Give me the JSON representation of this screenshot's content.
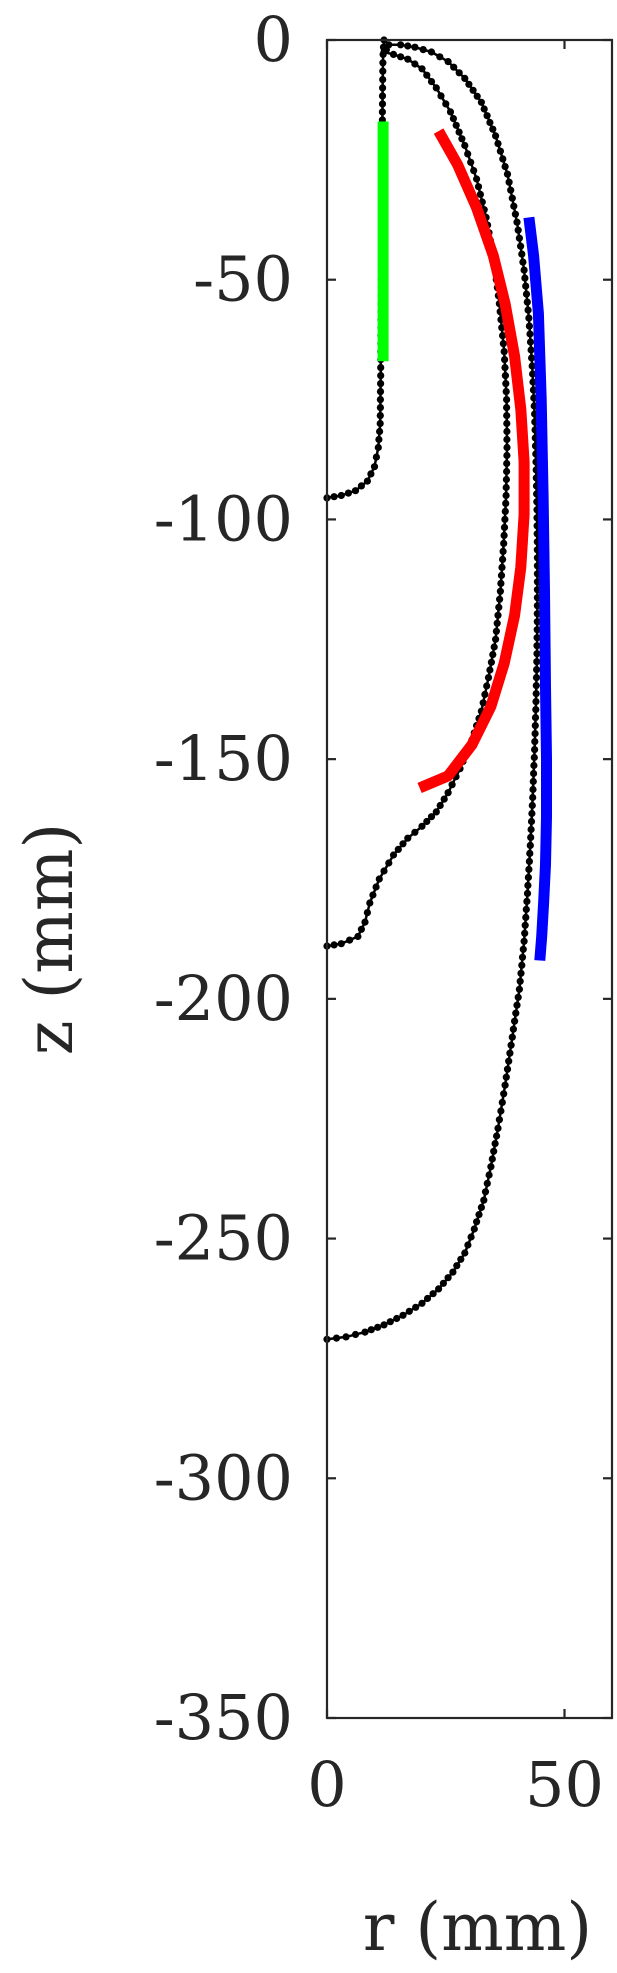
{
  "chart_data": {
    "type": "line",
    "title": "",
    "xlabel": "r (mm)",
    "ylabel": "z (mm)",
    "xlim": [
      0,
      60
    ],
    "ylim": [
      -350,
      0
    ],
    "xticks": [
      0,
      50
    ],
    "xtick_labels": [
      "0",
      "50"
    ],
    "yticks": [
      0,
      -50,
      -100,
      -150,
      -200,
      -250,
      -300,
      -350
    ],
    "ytick_labels": [
      "0",
      "-50",
      "-100",
      "-150",
      "-200",
      "-250",
      "-300",
      "-350"
    ],
    "grid": false,
    "series": [
      {
        "style": "black-dotted-line",
        "color": "#000000",
        "x": [
          0,
          3,
          6,
          8.5,
          10,
          10.8,
          11.2,
          11.3,
          11.4,
          11.5,
          11.6,
          11.7,
          11.8,
          12
        ],
        "y": [
          -95.5,
          -95,
          -94,
          -92,
          -89,
          -85,
          -80,
          -70,
          -55,
          -40,
          -25,
          -10,
          -3,
          0
        ]
      },
      {
        "style": "black-dotted-line",
        "color": "#000000",
        "x": [
          0,
          3,
          6.5,
          8,
          9,
          11,
          14,
          17,
          20,
          23,
          25.5,
          28,
          30.5,
          32.5,
          34,
          35.5,
          36.5,
          37.2,
          37.7,
          37.9,
          37.8,
          37.3,
          36.3,
          35,
          33.5,
          31.5,
          29,
          26,
          23,
          20,
          17,
          14,
          12,
          12.5
        ],
        "y": [
          -189,
          -188.5,
          -187,
          -184,
          -180,
          -175,
          -170,
          -166.5,
          -164,
          -161,
          -157,
          -152,
          -146,
          -140,
          -133,
          -125,
          -115,
          -105,
          -95,
          -85,
          -75,
          -65,
          -55,
          -45,
          -37,
          -29,
          -22,
          -15,
          -10,
          -6,
          -4,
          -3,
          -2.5,
          -2
        ]
      },
      {
        "style": "black-dotted-line",
        "color": "#000000",
        "x": [
          0,
          4,
          8,
          12,
          16,
          20,
          23.5,
          26.5,
          29,
          31,
          33,
          34.5,
          36,
          37.5,
          39,
          40.5,
          41.5,
          42.2,
          42.8,
          43.3,
          43.7,
          44,
          44.2,
          44.3,
          44.3,
          44.2,
          44,
          43.7,
          43.2,
          42.5,
          41.5,
          40,
          38,
          35.5,
          32.5,
          29,
          25.5,
          22,
          18.5,
          15.5,
          13
        ],
        "y": [
          -271,
          -270.5,
          -269.5,
          -268,
          -266,
          -263.5,
          -260.5,
          -257,
          -253,
          -248,
          -242,
          -235,
          -227,
          -218,
          -208,
          -198,
          -188,
          -178,
          -168,
          -158,
          -148,
          -138,
          -128,
          -118,
          -108,
          -98,
          -88,
          -78,
          -68,
          -58,
          -48,
          -38,
          -28,
          -20,
          -13,
          -8,
          -4.5,
          -2.5,
          -1.5,
          -1,
          -1
        ]
      },
      {
        "style": "thick-line",
        "color": "#00ff00",
        "x": [
          11.8,
          11.8
        ],
        "y": [
          -17,
          -67
        ]
      },
      {
        "style": "thick-line",
        "color": "#ff0000",
        "x": [
          23.5,
          27.5,
          31.5,
          35,
          37.5,
          39.5,
          40.8,
          41.5,
          41.5,
          40.8,
          39.5,
          37.3,
          34.5,
          30.5,
          25.5,
          19.5
        ],
        "y": [
          -19,
          -26,
          -35,
          -45,
          -55,
          -66,
          -77,
          -88,
          -99,
          -110,
          -120,
          -130,
          -139,
          -147,
          -153.5,
          -156
        ]
      },
      {
        "style": "thick-line",
        "color": "#0000ff",
        "x": [
          42.5,
          43.5,
          44.5,
          45.1,
          45.5,
          45.8,
          46,
          46.2,
          46.2,
          46,
          45.6,
          45.2,
          44.8
        ],
        "y": [
          -37,
          -45,
          -57,
          -75,
          -95,
          -115,
          -135,
          -150,
          -162,
          -172,
          -180,
          -187,
          -192
        ]
      }
    ]
  }
}
